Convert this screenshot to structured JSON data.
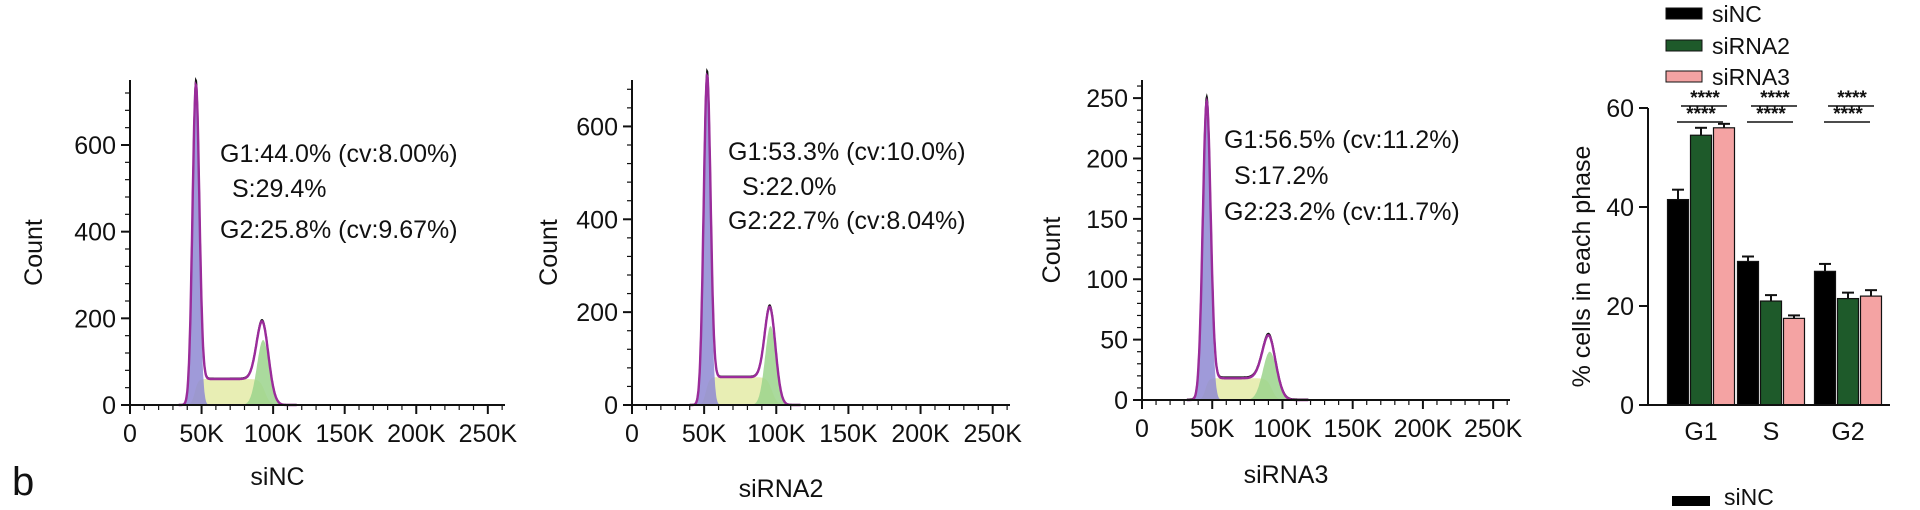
{
  "panel_label": "b",
  "footer_legend_label": "siNC",
  "chart_data": [
    {
      "type": "area",
      "name": "siNC",
      "xlabel": "siNC",
      "ylabel": "Count",
      "xlim": [
        0,
        262000
      ],
      "ylim": [
        0,
        750
      ],
      "x_ticks": [
        0,
        50000,
        100000,
        150000,
        200000,
        250000
      ],
      "x_tick_labels": [
        "0",
        "50K",
        "100K",
        "150K",
        "200K",
        "250K"
      ],
      "y_ticks": [
        0,
        200,
        400,
        600
      ],
      "y_tick_labels": [
        "0",
        "200",
        "400",
        "600"
      ],
      "annotations": [
        "G1:44.0% (cv:8.00%)",
        "S:29.4%",
        "G2:25.8% (cv:9.67%)"
      ],
      "g1": {
        "mean": 46000,
        "sd": 2400,
        "peak": 700
      },
      "g2": {
        "mean": 93000,
        "sd": 4300,
        "peak": 150
      },
      "s_level": 60
    },
    {
      "type": "area",
      "name": "siRNA2",
      "xlabel": "siRNA2",
      "ylabel": "Count",
      "xlim": [
        0,
        262000
      ],
      "ylim": [
        0,
        700
      ],
      "x_ticks": [
        0,
        50000,
        100000,
        150000,
        200000,
        250000
      ],
      "x_tick_labels": [
        "0",
        "50K",
        "100K",
        "150K",
        "200K",
        "250K"
      ],
      "y_ticks": [
        0,
        200,
        400,
        600
      ],
      "y_tick_labels": [
        "0",
        "200",
        "400",
        "600"
      ],
      "annotations": [
        "G1:53.3% (cv:10.0%)",
        "S:22.0%",
        "G2:22.7% (cv:8.04%)"
      ],
      "g1": {
        "mean": 52000,
        "sd": 2400,
        "peak": 670
      },
      "g2": {
        "mean": 96000,
        "sd": 3800,
        "peak": 170
      },
      "s_level": 60
    },
    {
      "type": "area",
      "name": "siRNA3",
      "xlabel": "siRNA3",
      "ylabel": "Count",
      "xlim": [
        0,
        262000
      ],
      "ylim": [
        0,
        265
      ],
      "x_ticks": [
        0,
        50000,
        100000,
        150000,
        200000,
        250000
      ],
      "x_tick_labels": [
        "0",
        "50K",
        "100K",
        "150K",
        "200K",
        "250K"
      ],
      "y_ticks": [
        0,
        50,
        100,
        150,
        200,
        250
      ],
      "y_tick_labels": [
        "0",
        "50",
        "100",
        "150",
        "200",
        "250"
      ],
      "annotations": [
        "G1:56.5% (cv:11.2%)",
        "S:17.2%",
        "G2:23.2% (cv:11.7%)"
      ],
      "g1": {
        "mean": 46000,
        "sd": 2800,
        "peak": 235
      },
      "g2": {
        "mean": 91000,
        "sd": 5000,
        "peak": 40
      },
      "s_level": 18
    },
    {
      "type": "bar",
      "title": "",
      "xlabel": "",
      "ylabel": "% cells in each phase",
      "categories": [
        "G1",
        "S",
        "G2"
      ],
      "ylim": [
        0,
        60
      ],
      "y_ticks": [
        0,
        20,
        40,
        60
      ],
      "y_tick_labels": [
        "0",
        "20",
        "40",
        "60"
      ],
      "series": [
        {
          "name": "siNC",
          "color": "#000000",
          "values": [
            41.5,
            29,
            27
          ],
          "errors": [
            2,
            1,
            1.5
          ]
        },
        {
          "name": "siRNA2",
          "color": "#1e5a2a",
          "values": [
            54.5,
            21,
            21.5
          ],
          "errors": [
            1.5,
            1.2,
            1.2
          ]
        },
        {
          "name": "siRNA3",
          "color": "#f4a3a3",
          "values": [
            56,
            17.5,
            22
          ],
          "errors": [
            0.8,
            0.6,
            1.2
          ]
        }
      ],
      "significance": [
        {
          "category": "G1",
          "marks": [
            "****",
            "****"
          ]
        },
        {
          "category": "S",
          "marks": [
            "****",
            "****"
          ]
        },
        {
          "category": "G2",
          "marks": [
            "****",
            "****"
          ]
        }
      ],
      "legend_position": "top"
    }
  ],
  "colors": {
    "g1_fill": "#8e88d2",
    "s_fill": "#e7edb0",
    "g2_fill": "#9bd48c",
    "fit_line": "#9a2c9a",
    "data_line": "#111111"
  }
}
